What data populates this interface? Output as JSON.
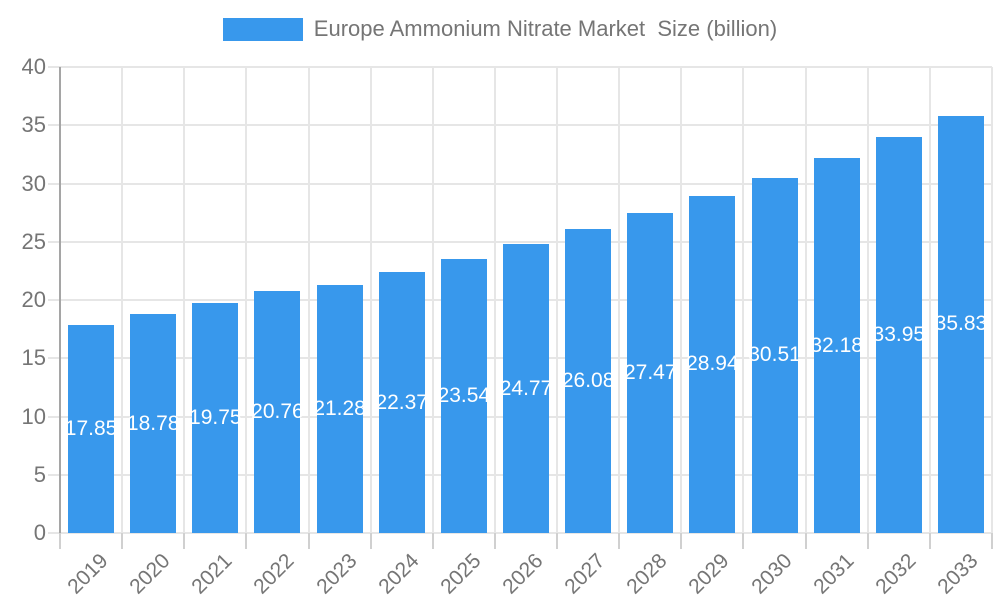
{
  "legend": {
    "swatch_color": "#3898ec",
    "label": "Europe Ammonium Nitrate Market  Size (billion)"
  },
  "chart_data": {
    "type": "bar",
    "title": "Europe Ammonium Nitrate Market  Size (billion)",
    "categories": [
      "2019",
      "2020",
      "2021",
      "2022",
      "2023",
      "2024",
      "2025",
      "2026",
      "2027",
      "2028",
      "2029",
      "2030",
      "2031",
      "2032",
      "2033"
    ],
    "values": [
      17.85,
      18.78,
      19.75,
      20.76,
      21.28,
      22.37,
      23.54,
      24.77,
      26.08,
      27.47,
      28.94,
      30.51,
      32.18,
      33.95,
      35.83
    ],
    "value_labels": [
      "17.85",
      "18.78",
      "19.75",
      "20.76",
      "21.28",
      "22.37",
      "23.54",
      "24.77",
      "26.08",
      "27.47",
      "28.94",
      "30.51",
      "32.18",
      "33.95",
      "35.83"
    ],
    "xlabel": "",
    "ylabel": "",
    "ylim": [
      0,
      40
    ],
    "yticks": [
      0,
      5,
      10,
      15,
      20,
      25,
      30,
      35,
      40
    ],
    "grid": true,
    "legend_position": "top",
    "bar_color": "#3898ec",
    "value_label_color": "#ffffff"
  },
  "colors": {
    "axis_text": "#757575",
    "grid_line": "#e6e6e6",
    "tick_line": "#d0d0d0",
    "axis_line": "#a5a5a5",
    "background": "#ffffff"
  }
}
